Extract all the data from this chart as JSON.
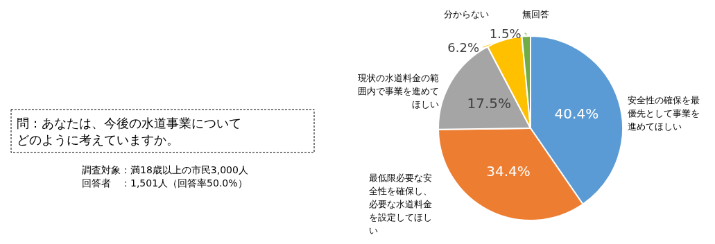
{
  "chart_data": {
    "type": "pie",
    "title": "問：あなたは、今後の水道事業についてどのように考えていますか。",
    "annotations": [
      "調査対象：満18歳以上の市民3,000人",
      "回答者　：1,501人（回答率50.0%）"
    ],
    "categories": [
      "安全性の確保を最優先として事業を進めてほしい",
      "最低限必要な安全性を確保し、必要な水道料金を設定してほしい",
      "現状の水道料金の範囲内で事業を進めてほしい",
      "分からない",
      "無回答"
    ],
    "values": [
      40.4,
      34.4,
      17.5,
      6.2,
      1.5
    ],
    "colors": [
      "#5b9bd5",
      "#ed7d31",
      "#a5a5a5",
      "#ffc000",
      "#70ad47"
    ],
    "value_labels": [
      "40.4%",
      "34.4%",
      "17.5%",
      "6.2%",
      "1.5%"
    ],
    "legend": false
  }
}
